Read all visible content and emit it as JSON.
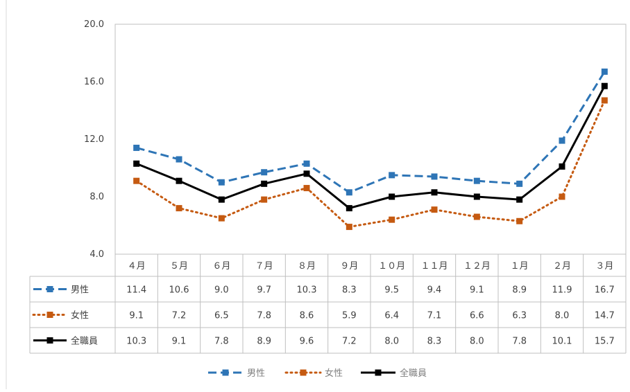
{
  "chart_data": {
    "type": "line",
    "categories": [
      "４月",
      "５月",
      "６月",
      "７月",
      "８月",
      "９月",
      "１０月",
      "１１月",
      "１２月",
      "１月",
      "２月",
      "３月"
    ],
    "ylim": [
      4.0,
      20.0
    ],
    "yticks": [
      "20.0",
      "16.0",
      "12.0",
      "8.0",
      "4.0"
    ],
    "ytick_values": [
      20,
      16,
      12,
      8,
      4
    ],
    "grid": false,
    "legend": "bottom",
    "data_table": true,
    "series": [
      {
        "name": "男性",
        "values": [
          11.4,
          10.6,
          9.0,
          9.7,
          10.3,
          8.3,
          9.5,
          9.4,
          9.1,
          8.9,
          11.9,
          16.7
        ],
        "labels": [
          "11.4",
          "10.6",
          "9.0",
          "9.7",
          "10.3",
          "8.3",
          "9.5",
          "9.4",
          "9.1",
          "8.9",
          "11.9",
          "16.7"
        ],
        "color": "#2e75b6",
        "style": "dashed"
      },
      {
        "name": "女性",
        "values": [
          9.1,
          7.2,
          6.5,
          7.8,
          8.6,
          5.9,
          6.4,
          7.1,
          6.6,
          6.3,
          8.0,
          14.7
        ],
        "labels": [
          "9.1",
          "7.2",
          "6.5",
          "7.8",
          "8.6",
          "5.9",
          "6.4",
          "7.1",
          "6.6",
          "6.3",
          "8.0",
          "14.7"
        ],
        "color": "#c55a11",
        "style": "dotted"
      },
      {
        "name": "全職員",
        "values": [
          10.3,
          9.1,
          7.8,
          8.9,
          9.6,
          7.2,
          8.0,
          8.3,
          8.0,
          7.8,
          10.1,
          15.7
        ],
        "labels": [
          "10.3",
          "9.1",
          "7.8",
          "8.9",
          "9.6",
          "7.2",
          "8.0",
          "8.3",
          "8.0",
          "7.8",
          "10.1",
          "15.7"
        ],
        "color": "#000000",
        "style": "solid"
      }
    ]
  }
}
